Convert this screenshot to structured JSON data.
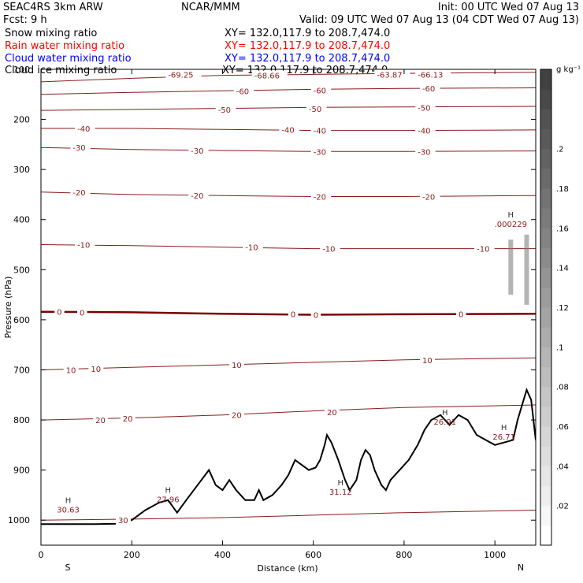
{
  "header": {
    "model": "SEAC4RS  3km ARW",
    "center": "NCAR/MMM",
    "init": "Init: 00 UTC Wed 07 Aug 13",
    "fcst": "Fcst:     9 h",
    "valid": "Valid: 09 UTC Wed 07 Aug 13 (04 CDT Wed 07 Aug 13)"
  },
  "fields": [
    {
      "name": "Snow mixing ratio",
      "xy": "XY= 132.0,117.9 to 208.7,474.0",
      "color": "#000000"
    },
    {
      "name": "Rain water mixing ratio",
      "xy": "XY= 132.0,117.9 to 208.7,474.0",
      "color": "#ff0000"
    },
    {
      "name": "Cloud water mixing ratio",
      "xy": "XY= 132.0,117.9 to 208.7,474.0",
      "color": "#0000ff"
    },
    {
      "name": "Cloud ice mixing ratio",
      "xy": "XY= 132.0,117.9 to 208.7,474.0",
      "color": "#000000"
    }
  ],
  "colors": {
    "contour": "#8b1a1a",
    "zero_contour": "#7a0000",
    "terrain": "#000000"
  },
  "colorbar": {
    "unit": "g kg⁻¹",
    "labels": [
      ".2",
      ".18",
      ".16",
      ".14",
      ".12",
      ".1",
      ".08",
      ".06",
      ".04",
      ".02"
    ],
    "range": [
      0,
      0.24
    ]
  },
  "chart_data": {
    "type": "contour",
    "xlabel": "Distance (km)",
    "ylabel": "Pressure (hPa)",
    "xlim": [
      0,
      1090
    ],
    "ylim": [
      1050,
      100
    ],
    "xticks": [
      "0",
      "200",
      "400",
      "600",
      "800",
      "1000"
    ],
    "yticks": [
      "100",
      "200",
      "300",
      "400",
      "500",
      "600",
      "700",
      "800",
      "900",
      "1000"
    ],
    "x_end_labels": {
      "left": "S",
      "right": "N"
    },
    "contour_lines": [
      {
        "label": "-69.25",
        "p": [
          125,
          118,
          112,
          110,
          108,
          106
        ]
      },
      {
        "label": "-60",
        "p": [
          150,
          146,
          143,
          140,
          138,
          137
        ]
      },
      {
        "label": "-50",
        "p": [
          182,
          180,
          178,
          176,
          175,
          174
        ]
      },
      {
        "label": "-40",
        "p": [
          218,
          218,
          220,
          222,
          222,
          221
        ]
      },
      {
        "label": "-30",
        "p": [
          256,
          260,
          262,
          264,
          264,
          263
        ]
      },
      {
        "label": "-20",
        "p": [
          345,
          350,
          352,
          354,
          354,
          352
        ]
      },
      {
        "label": "-10",
        "p": [
          450,
          452,
          455,
          458,
          458,
          458
        ]
      },
      {
        "label": "0",
        "p": [
          584,
          585,
          588,
          590,
          589,
          588
        ]
      },
      {
        "label": "10",
        "p": [
          700,
          695,
          690,
          685,
          680,
          676
        ]
      },
      {
        "label": "20",
        "p": [
          800,
          796,
          790,
          782,
          775,
          770
        ]
      },
      {
        "label": "30",
        "p": [
          1000,
          998,
          995,
          990,
          985,
          980
        ]
      }
    ],
    "contour_x": [
      0,
      200,
      400,
      600,
      800,
      1090
    ],
    "inline_labels": [
      {
        "text": "-69.25",
        "x": 280,
        "p": 110
      },
      {
        "text": "-68.66",
        "x": 470,
        "p": 112
      },
      {
        "text": "-63.87",
        "x": 740,
        "p": 110
      },
      {
        "text": "-66.13",
        "x": 830,
        "p": 110
      },
      {
        "text": "-60",
        "x": 430,
        "p": 143
      },
      {
        "text": "-60",
        "x": 600,
        "p": 142
      },
      {
        "text": "-60",
        "x": 840,
        "p": 138
      },
      {
        "text": "-50",
        "x": 390,
        "p": 180
      },
      {
        "text": "-50",
        "x": 590,
        "p": 179
      },
      {
        "text": "-50",
        "x": 830,
        "p": 176
      },
      {
        "text": "-40",
        "x": 80,
        "p": 218
      },
      {
        "text": "-40",
        "x": 530,
        "p": 220
      },
      {
        "text": "-40",
        "x": 600,
        "p": 222
      },
      {
        "text": "-40",
        "x": 830,
        "p": 222
      },
      {
        "text": "-30",
        "x": 70,
        "p": 256
      },
      {
        "text": "-30",
        "x": 330,
        "p": 262
      },
      {
        "text": "-30",
        "x": 600,
        "p": 264
      },
      {
        "text": "-30",
        "x": 830,
        "p": 264
      },
      {
        "text": "-20",
        "x": 70,
        "p": 345
      },
      {
        "text": "-20",
        "x": 330,
        "p": 352
      },
      {
        "text": "-20",
        "x": 600,
        "p": 354
      },
      {
        "text": "-20",
        "x": 840,
        "p": 354
      },
      {
        "text": "-10",
        "x": 80,
        "p": 450
      },
      {
        "text": "-10",
        "x": 450,
        "p": 455
      },
      {
        "text": "-10",
        "x": 620,
        "p": 458
      },
      {
        "text": "-10",
        "x": 960,
        "p": 458
      },
      {
        "text": "0",
        "x": 35,
        "p": 584
      },
      {
        "text": "0",
        "x": 85,
        "p": 585
      },
      {
        "text": "0",
        "x": 550,
        "p": 588
      },
      {
        "text": "0",
        "x": 600,
        "p": 590
      },
      {
        "text": "0",
        "x": 920,
        "p": 588
      },
      {
        "text": "10",
        "x": 55,
        "p": 700
      },
      {
        "text": "10",
        "x": 110,
        "p": 698
      },
      {
        "text": "10",
        "x": 420,
        "p": 690
      },
      {
        "text": "10",
        "x": 840,
        "p": 680
      },
      {
        "text": "20",
        "x": 120,
        "p": 800
      },
      {
        "text": "20",
        "x": 180,
        "p": 797
      },
      {
        "text": "20",
        "x": 420,
        "p": 790
      },
      {
        "text": "20",
        "x": 630,
        "p": 784
      },
      {
        "text": "30",
        "x": 170,
        "p": 1000
      }
    ],
    "extrema": [
      {
        "mark": "H",
        "value": "30.63",
        "x": 60,
        "p": 975
      },
      {
        "mark": "H",
        "value": "27.96",
        "x": 280,
        "p": 955
      },
      {
        "mark": "H",
        "value": "31.12",
        "x": 660,
        "p": 940
      },
      {
        "mark": "H",
        "value": "26.91",
        "x": 890,
        "p": 800
      },
      {
        "mark": "H",
        "value": "26.71",
        "x": 1020,
        "p": 830
      },
      {
        "mark": "H",
        "value": ".000229",
        "x": 1035,
        "p": 405
      }
    ],
    "terrain_p": [
      [
        0,
        1008
      ],
      [
        60,
        1008
      ],
      [
        120,
        1008
      ],
      [
        170,
        1007
      ],
      [
        200,
        1000
      ],
      [
        230,
        980
      ],
      [
        260,
        965
      ],
      [
        280,
        960
      ],
      [
        300,
        985
      ],
      [
        320,
        960
      ],
      [
        345,
        930
      ],
      [
        370,
        900
      ],
      [
        385,
        930
      ],
      [
        400,
        940
      ],
      [
        415,
        920
      ],
      [
        430,
        940
      ],
      [
        450,
        960
      ],
      [
        470,
        960
      ],
      [
        480,
        940
      ],
      [
        490,
        960
      ],
      [
        510,
        950
      ],
      [
        530,
        930
      ],
      [
        545,
        910
      ],
      [
        560,
        880
      ],
      [
        575,
        890
      ],
      [
        590,
        900
      ],
      [
        605,
        895
      ],
      [
        615,
        880
      ],
      [
        625,
        850
      ],
      [
        630,
        830
      ],
      [
        640,
        845
      ],
      [
        655,
        880
      ],
      [
        670,
        920
      ],
      [
        680,
        940
      ],
      [
        695,
        920
      ],
      [
        705,
        880
      ],
      [
        715,
        860
      ],
      [
        725,
        870
      ],
      [
        735,
        900
      ],
      [
        750,
        930
      ],
      [
        760,
        940
      ],
      [
        770,
        920
      ],
      [
        790,
        900
      ],
      [
        810,
        880
      ],
      [
        830,
        850
      ],
      [
        845,
        820
      ],
      [
        860,
        800
      ],
      [
        880,
        790
      ],
      [
        900,
        810
      ],
      [
        920,
        790
      ],
      [
        940,
        800
      ],
      [
        960,
        830
      ],
      [
        980,
        840
      ],
      [
        1000,
        850
      ],
      [
        1020,
        845
      ],
      [
        1040,
        840
      ],
      [
        1050,
        800
      ],
      [
        1060,
        770
      ],
      [
        1070,
        740
      ],
      [
        1080,
        760
      ],
      [
        1090,
        840
      ]
    ]
  }
}
